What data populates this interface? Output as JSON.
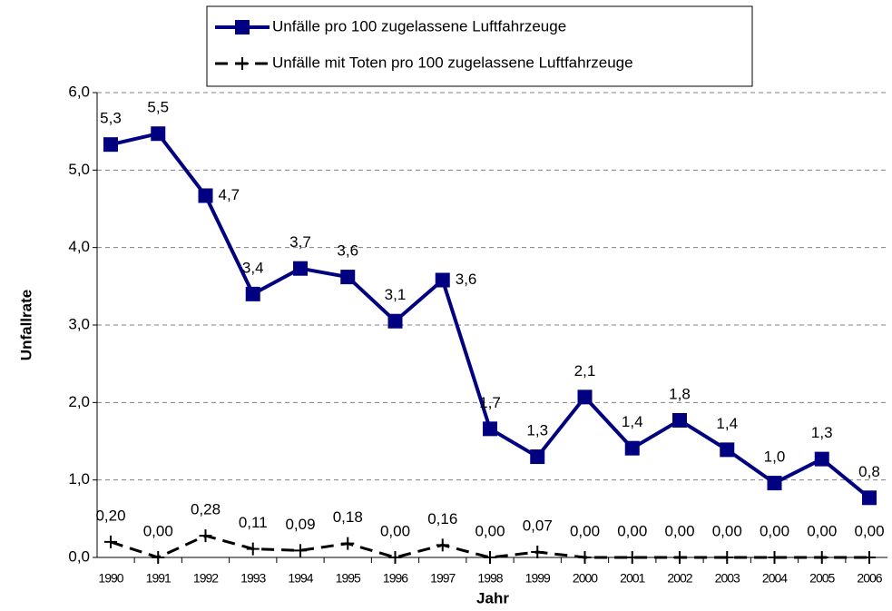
{
  "chart_data": {
    "type": "line",
    "x_label": "Jahr",
    "y_label": "Unfallrate",
    "categories": [
      "1990",
      "1991",
      "1992",
      "1993",
      "1994",
      "1995",
      "1996",
      "1997",
      "1998",
      "1999",
      "2000",
      "2001",
      "2002",
      "2003",
      "2004",
      "2005",
      "2006"
    ],
    "series": [
      {
        "name": "Unfälle pro 100 zugelassene Luftfahrzeuge",
        "color": "#000080",
        "marker": "square",
        "values": [
          5.33,
          5.47,
          4.67,
          3.4,
          3.73,
          3.62,
          3.05,
          3.58,
          1.66,
          1.3,
          2.07,
          1.41,
          1.77,
          1.39,
          0.96,
          1.27,
          0.77
        ],
        "value_labels": [
          "5,3",
          "5,5",
          "4,7",
          "3,4",
          "3,7",
          "3,6",
          "3,1",
          "3,6",
          "1,7",
          "1,3",
          "2,1",
          "1,4",
          "1,8",
          "1,4",
          "1,0",
          "1,3",
          "0,8"
        ]
      },
      {
        "name": "Unfälle mit Toten pro 100 zugelassene Luftfahrzeuge",
        "color": "#000000",
        "marker": "plus",
        "dashed": true,
        "values": [
          0.2,
          0.0,
          0.28,
          0.11,
          0.09,
          0.18,
          0.0,
          0.16,
          0.0,
          0.07,
          0.0,
          0.0,
          0.0,
          0.0,
          0.0,
          0.0,
          0.0
        ],
        "value_labels": [
          "0,20",
          "0,00",
          "0,28",
          "0,11",
          "0,09",
          "0,18",
          "0,00",
          "0,16",
          "0,00",
          "0,07",
          "0,00",
          "0,00",
          "0,00",
          "0,00",
          "0,00",
          "0,00",
          "0,00"
        ]
      }
    ],
    "ylim": [
      0,
      6
    ],
    "yticks": [
      {
        "value": 0,
        "label": "0,0"
      },
      {
        "value": 1,
        "label": "1,0"
      },
      {
        "value": 2,
        "label": "2,0"
      },
      {
        "value": 3,
        "label": "3,0"
      },
      {
        "value": 4,
        "label": "4,0"
      },
      {
        "value": 5,
        "label": "5,0"
      },
      {
        "value": 6,
        "label": "6,0"
      }
    ],
    "grid": true,
    "legend": "top"
  }
}
